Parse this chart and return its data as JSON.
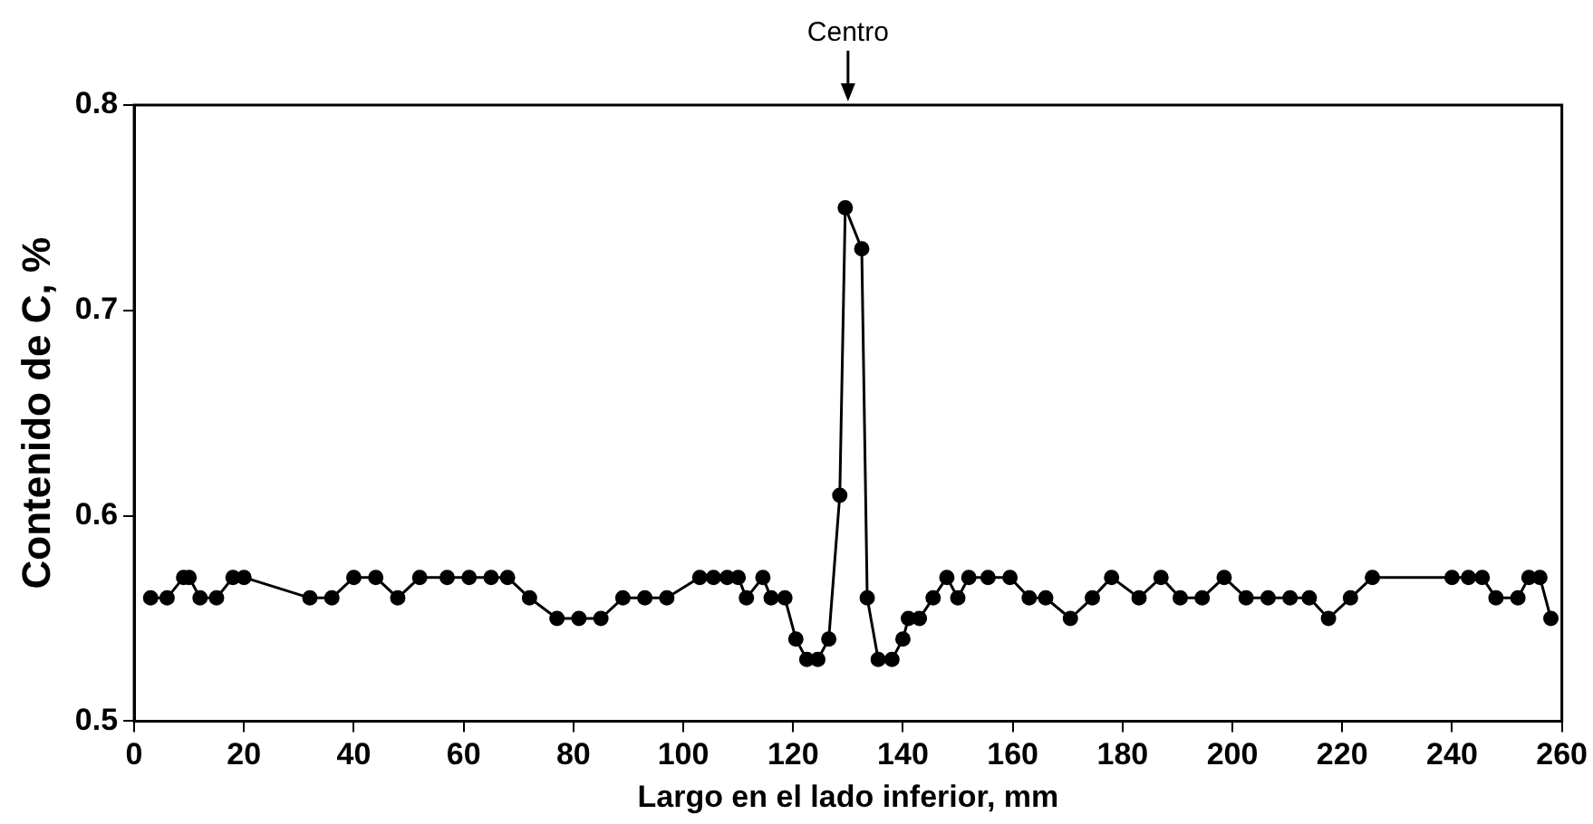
{
  "chart_data": {
    "type": "line",
    "xlabel": "Largo en el lado inferior, mm",
    "ylabel": "Contenido de C, %",
    "annotations": [
      "Centro"
    ],
    "x": [
      3,
      6,
      9,
      10,
      12,
      15,
      18,
      20,
      32,
      36,
      40,
      44,
      48,
      52,
      57,
      61,
      65,
      68,
      72,
      77,
      81,
      85,
      89,
      93,
      97,
      103,
      105.5,
      108,
      110,
      111.5,
      114.5,
      116,
      118.5,
      120.5,
      122.5,
      124.5,
      126.5,
      128.5,
      129.5,
      132.5,
      133.5,
      135.5,
      138,
      140,
      141,
      143,
      145.5,
      148,
      150,
      152,
      155.5,
      159.5,
      163,
      166,
      170.5,
      174.5,
      178,
      183,
      187,
      190.5,
      194.5,
      198.5,
      202.5,
      206.5,
      210.5,
      214,
      217.5,
      221.5,
      225.5,
      240,
      243,
      245.5,
      248,
      252,
      254,
      256,
      258
    ],
    "series": [
      {
        "color": "#000000",
        "values": [
          0.56,
          0.56,
          0.57,
          0.57,
          0.56,
          0.56,
          0.57,
          0.57,
          0.56,
          0.56,
          0.57,
          0.57,
          0.56,
          0.57,
          0.57,
          0.57,
          0.57,
          0.57,
          0.56,
          0.55,
          0.55,
          0.55,
          0.56,
          0.56,
          0.56,
          0.57,
          0.57,
          0.57,
          0.57,
          0.56,
          0.57,
          0.56,
          0.56,
          0.54,
          0.53,
          0.53,
          0.54,
          0.61,
          0.75,
          0.73,
          0.56,
          0.53,
          0.53,
          0.54,
          0.55,
          0.55,
          0.56,
          0.57,
          0.56,
          0.57,
          0.57,
          0.57,
          0.56,
          0.56,
          0.55,
          0.56,
          0.57,
          0.56,
          0.57,
          0.56,
          0.56,
          0.57,
          0.56,
          0.56,
          0.56,
          0.56,
          0.55,
          0.56,
          0.57,
          0.57,
          0.57,
          0.57,
          0.56,
          0.56,
          0.57,
          0.57,
          0.55
        ]
      }
    ],
    "xlim": [
      0,
      260
    ],
    "xticks": [
      0,
      20,
      40,
      60,
      80,
      100,
      120,
      140,
      160,
      180,
      200,
      220,
      240,
      260
    ],
    "ylim": [
      0.5,
      0.8
    ],
    "yticks": [
      0.5,
      0.6,
      0.7,
      0.8
    ],
    "grid": false,
    "legend": false,
    "marker": "circle",
    "line_style": "solid"
  }
}
